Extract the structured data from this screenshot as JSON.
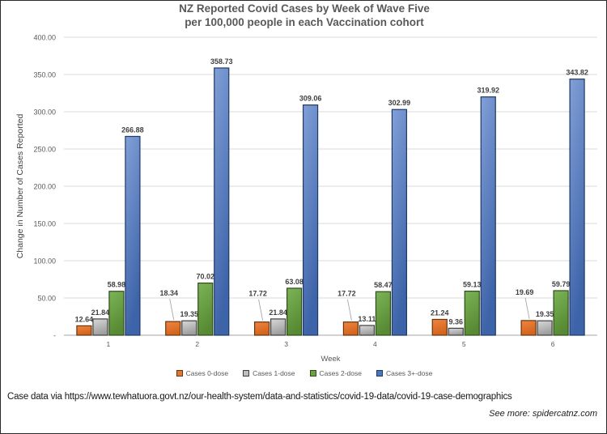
{
  "title": {
    "line1": "NZ Reported Covid Cases by Week of Wave Five",
    "line2": "per 100,000 people in each Vaccination cohort"
  },
  "chart_data": {
    "type": "bar",
    "categories": [
      "1",
      "2",
      "3",
      "4",
      "5",
      "6"
    ],
    "series": [
      {
        "name": "Cases 0-dose",
        "color": "#E2772E",
        "fill_light": "#F08440",
        "fill_dark": "#D2641C",
        "border": "#66350F",
        "values": [
          12.64,
          18.34,
          17.72,
          17.72,
          21.24,
          19.69
        ],
        "label_offsets": [
          0,
          1,
          1,
          1,
          0,
          1
        ]
      },
      {
        "name": "Cases 1-dose",
        "color": "#BFBFBF",
        "fill_light": "#D9D9D9",
        "fill_dark": "#9E9E9E",
        "border": "#3F3F3F",
        "values": [
          21.84,
          19.35,
          21.84,
          13.11,
          9.36,
          19.35
        ],
        "label_offsets": [
          0,
          0,
          0,
          0,
          0,
          0
        ]
      },
      {
        "name": "Cases 2-dose",
        "color": "#6CA244",
        "fill_light": "#7CB457",
        "fill_dark": "#578A33",
        "border": "#2F4B1C",
        "values": [
          58.98,
          70.02,
          63.08,
          58.47,
          59.13,
          59.79
        ],
        "label_offsets": [
          0,
          0,
          0,
          0,
          0,
          0
        ]
      },
      {
        "name": "Cases 3+-dose",
        "color": "#4B77C0",
        "fill_light": "#82A0D8",
        "fill_dark": "#3D63A8",
        "border": "#1E3A66",
        "values": [
          266.88,
          358.73,
          309.06,
          302.99,
          319.92,
          343.82
        ],
        "label_offsets": [
          0,
          0,
          0,
          0,
          0,
          0
        ]
      }
    ],
    "xlabel": "Week",
    "ylabel": "Change in Number of Cases Reported",
    "ylim": [
      0,
      400
    ],
    "ytick_step": 50,
    "ytick_labels": [
      "-",
      "50.00",
      "100.00",
      "150.00",
      "200.00",
      "250.00",
      "300.00",
      "350.00",
      "400.00"
    ],
    "grid": true,
    "legend_position": "bottom",
    "gridline_color": "#D9D9D9",
    "baseline_color": "#A6A6A6",
    "tick_label_color": "#595959",
    "data_label_color": "#3F3F3F",
    "leader_line_color": "#A6A6A6"
  },
  "footer": {
    "source": "Case data via https://www.tewhatuora.govt.nz/our-health-system/data-and-statistics/covid-19-data/covid-19-case-demographics",
    "see_more": "See more: spidercatnz.com"
  }
}
